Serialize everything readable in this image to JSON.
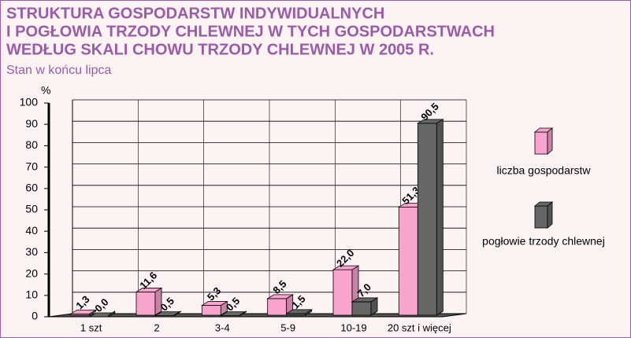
{
  "chart_data": {
    "type": "bar3d",
    "title": [
      "STRUKTURA  GOSPODARSTW  INDYWIDUALNYCH",
      "I  POGŁOWIA  TRZODY  CHLEWNEJ  W  TYCH  GOSPODARSTWACH",
      "WEDŁUG  SKALI  CHOWU  TRZODY  CHLEWNEJ  W  2005 R."
    ],
    "subtitle": "Stan w końcu lipca",
    "y_label": "%",
    "categories": [
      "1 szt",
      "2",
      "3-4",
      "5-9",
      "10-19",
      "20 szt i więcej"
    ],
    "series": [
      {
        "name": "liczba gospodarstw",
        "color": "#f9a3cf",
        "values": [
          1.3,
          11.6,
          5.3,
          8.5,
          22.0,
          51.3
        ],
        "value_labels": [
          "1,3",
          "11,6",
          "5,3",
          "8,5",
          "22,0",
          "51,3"
        ]
      },
      {
        "name": "pogłowie trzody chlewnej",
        "color": "#666666",
        "values": [
          0.0,
          0.5,
          0.5,
          1.5,
          7.0,
          90.5
        ],
        "value_labels": [
          "0,0",
          "0,5",
          "0,5",
          "1,5",
          "7,0",
          "90,5"
        ]
      }
    ],
    "ylim": [
      0,
      100
    ],
    "yticks": [
      0,
      10,
      20,
      30,
      40,
      50,
      60,
      70,
      80,
      90,
      100
    ],
    "grid": true
  }
}
